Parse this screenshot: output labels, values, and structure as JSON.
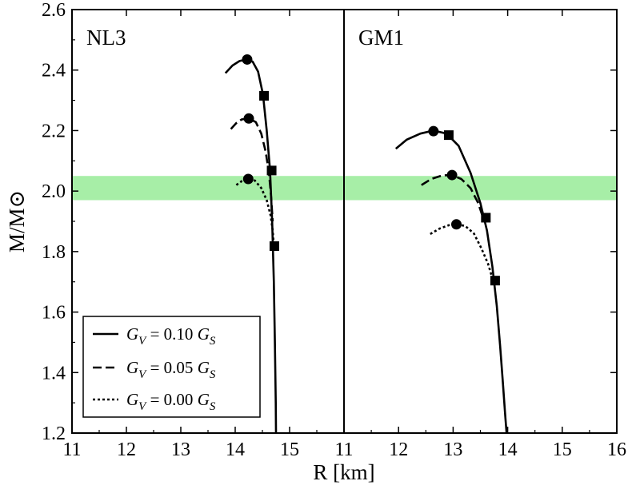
{
  "chart_data": {
    "type": "line",
    "xlabel": "R [km]",
    "ylabel": "M/M⊙",
    "ylim": [
      1.2,
      2.6
    ],
    "yticks": [
      "1.2",
      "1.4",
      "1.6",
      "1.8",
      "2.0",
      "2.2",
      "2.4",
      "2.6"
    ],
    "band": {
      "ymin": 1.97,
      "ymax": 2.05,
      "color": "#a7eea7"
    },
    "legend": {
      "placement": "bottom-left of left panel",
      "entries": [
        {
          "style": "solid",
          "prefix": "G",
          "sub1": "V",
          "mid": " = 0.10 ",
          "suffix": "G",
          "sub2": "S"
        },
        {
          "style": "dashed",
          "prefix": "G",
          "sub1": "V",
          "mid": " = 0.05 ",
          "suffix": "G",
          "sub2": "S"
        },
        {
          "style": "dotted",
          "prefix": "G",
          "sub1": "V",
          "mid": " = 0.00 ",
          "suffix": "G",
          "sub2": "S"
        }
      ]
    },
    "panels": [
      {
        "label": "NL3",
        "xlim": [
          11,
          16
        ],
        "xticks": [
          "11",
          "12",
          "13",
          "14",
          "15"
        ],
        "series": [
          {
            "name": "G_V = 0.10 G_S",
            "style": "solid",
            "x": [
              13.82,
              13.95,
              14.08,
              14.2,
              14.32,
              14.42,
              14.51,
              14.58,
              14.64,
              14.68,
              14.71,
              14.73,
              14.745,
              14.75
            ],
            "y": [
              2.39,
              2.415,
              2.43,
              2.435,
              2.428,
              2.395,
              2.32,
              2.2,
              2.07,
              1.9,
              1.7,
              1.5,
              1.3,
              1.2
            ]
          },
          {
            "name": "G_V = 0.05 G_S",
            "style": "dashed",
            "x": [
              13.92,
              14.02,
              14.12,
              14.25,
              14.38,
              14.48,
              14.56,
              14.62,
              14.66,
              14.69
            ],
            "y": [
              2.205,
              2.225,
              2.237,
              2.24,
              2.228,
              2.19,
              2.13,
              2.06,
              1.98,
              1.9
            ]
          },
          {
            "name": "G_V = 0.00 G_S",
            "style": "dotted",
            "x": [
              14.02,
              14.12,
              14.24,
              14.36,
              14.48,
              14.58,
              14.65,
              14.69,
              14.71
            ],
            "y": [
              2.02,
              2.033,
              2.04,
              2.035,
              2.01,
              1.97,
              1.92,
              1.87,
              1.82
            ]
          }
        ],
        "circles": [
          {
            "x": 14.22,
            "y": 2.435
          },
          {
            "x": 14.25,
            "y": 2.24
          },
          {
            "x": 14.24,
            "y": 2.04
          }
        ],
        "squares": [
          {
            "x": 14.53,
            "y": 2.315
          },
          {
            "x": 14.67,
            "y": 2.068
          },
          {
            "x": 14.72,
            "y": 1.818
          }
        ]
      },
      {
        "label": "GM1",
        "xlim": [
          11,
          16
        ],
        "xticks": [
          "11",
          "12",
          "13",
          "14",
          "15",
          "16"
        ],
        "series": [
          {
            "name": "G_V = 0.10 G_S",
            "style": "solid",
            "x": [
              11.95,
              12.15,
              12.4,
              12.64,
              12.88,
              13.1,
              13.32,
              13.5,
              13.62,
              13.72,
              13.8,
              13.86,
              13.91,
              13.95,
              13.98
            ],
            "y": [
              2.14,
              2.17,
              2.19,
              2.2,
              2.19,
              2.15,
              2.06,
              1.96,
              1.87,
              1.75,
              1.62,
              1.49,
              1.37,
              1.27,
              1.2
            ]
          },
          {
            "name": "G_V = 0.05 G_S",
            "style": "dashed",
            "x": [
              12.42,
              12.6,
              12.8,
              12.98,
              13.15,
              13.32,
              13.46,
              13.57
            ],
            "y": [
              2.02,
              2.04,
              2.052,
              2.053,
              2.04,
              2.01,
              1.96,
              1.9
            ]
          },
          {
            "name": "G_V = 0.00 G_S",
            "style": "dotted",
            "x": [
              12.58,
              12.75,
              12.92,
              13.06,
              13.22,
              13.38,
              13.52,
              13.64,
              13.74
            ],
            "y": [
              1.858,
              1.876,
              1.887,
              1.89,
              1.885,
              1.86,
              1.81,
              1.76,
              1.7
            ]
          }
        ],
        "circles": [
          {
            "x": 12.64,
            "y": 2.198
          },
          {
            "x": 12.98,
            "y": 2.053
          },
          {
            "x": 13.06,
            "y": 1.89
          }
        ],
        "squares": [
          {
            "x": 12.92,
            "y": 2.185
          },
          {
            "x": 13.6,
            "y": 1.912
          },
          {
            "x": 13.77,
            "y": 1.704
          }
        ]
      }
    ]
  }
}
